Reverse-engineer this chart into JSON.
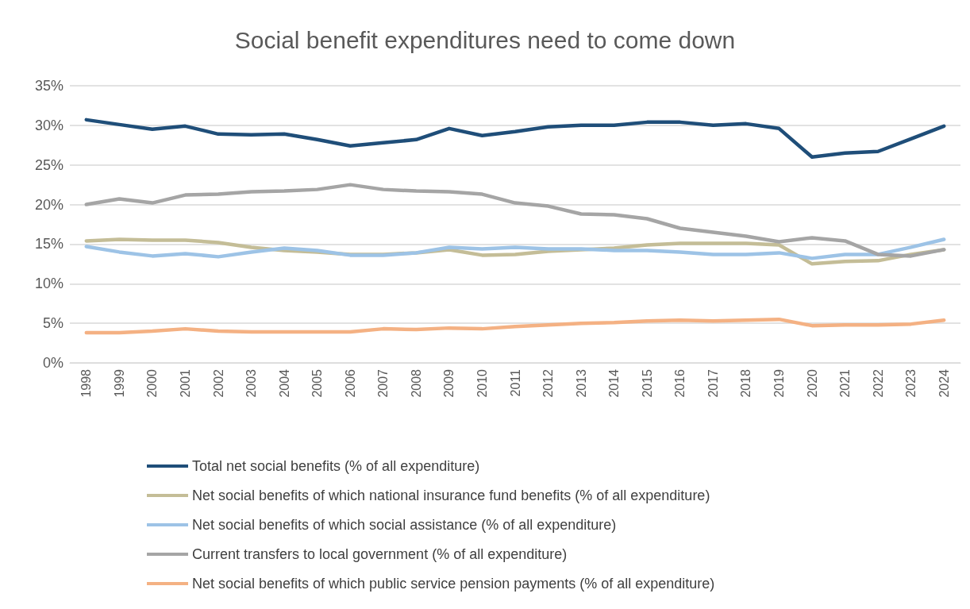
{
  "chart_data": {
    "type": "line",
    "title": "Social benefit expenditures need to come down",
    "categories": [
      "1998",
      "1999",
      "2000",
      "2001",
      "2002",
      "2003",
      "2004",
      "2005",
      "2006",
      "2007",
      "2008",
      "2009",
      "2010",
      "2011",
      "2012",
      "2013",
      "2014",
      "2015",
      "2016",
      "2017",
      "2018",
      "2019",
      "2020",
      "2021",
      "2022",
      "2023",
      "2024"
    ],
    "series": [
      {
        "name": "Total net social benefits (% of all expenditure)",
        "color": "#1f4e79",
        "values": [
          30.7,
          30.1,
          29.5,
          29.9,
          28.9,
          28.8,
          28.9,
          28.2,
          27.4,
          27.8,
          28.2,
          29.6,
          28.7,
          29.2,
          29.8,
          30.0,
          30.0,
          30.4,
          30.4,
          30.0,
          30.2,
          29.6,
          26.0,
          26.5,
          26.7,
          28.3,
          29.9
        ]
      },
      {
        "name": "Net social benefits of which national insurance fund benefits (% of all expenditure)",
        "color": "#c4bd97",
        "values": [
          15.4,
          15.6,
          15.5,
          15.5,
          15.2,
          14.6,
          14.2,
          14.0,
          13.7,
          13.7,
          13.9,
          14.3,
          13.6,
          13.7,
          14.1,
          14.3,
          14.5,
          14.9,
          15.1,
          15.1,
          15.1,
          14.9,
          12.5,
          12.8,
          12.9,
          13.7,
          14.3
        ]
      },
      {
        "name": "Net social benefits of which social assistance (% of all expenditure)",
        "color": "#9dc3e6",
        "values": [
          14.7,
          14.0,
          13.5,
          13.8,
          13.4,
          14.0,
          14.5,
          14.2,
          13.6,
          13.6,
          13.9,
          14.6,
          14.4,
          14.6,
          14.4,
          14.4,
          14.2,
          14.2,
          14.0,
          13.7,
          13.7,
          13.9,
          13.2,
          13.7,
          13.7,
          14.6,
          15.6
        ]
      },
      {
        "name": "Current transfers to local government (% of all expenditure)",
        "color": "#a5a5a5",
        "values": [
          20.0,
          20.7,
          20.2,
          21.2,
          21.3,
          21.6,
          21.7,
          21.9,
          22.5,
          21.9,
          21.7,
          21.6,
          21.3,
          20.2,
          19.8,
          18.8,
          18.7,
          18.2,
          17.0,
          16.5,
          16.0,
          15.3,
          15.8,
          15.4,
          13.7,
          13.5,
          14.3
        ]
      },
      {
        "name": "Net social benefits of which public service pension payments (% of all expenditure)",
        "color": "#f4b183",
        "values": [
          3.8,
          3.8,
          4.0,
          4.3,
          4.0,
          3.9,
          3.9,
          3.9,
          3.9,
          4.3,
          4.2,
          4.4,
          4.3,
          4.6,
          4.8,
          5.0,
          5.1,
          5.3,
          5.4,
          5.3,
          5.4,
          5.5,
          4.7,
          4.8,
          4.8,
          4.9,
          5.4
        ]
      }
    ],
    "ylim": [
      0,
      35
    ],
    "yticks": [
      {
        "value": 0,
        "label": "0%"
      },
      {
        "value": 5,
        "label": "5%"
      },
      {
        "value": 10,
        "label": "10%"
      },
      {
        "value": 15,
        "label": "15%"
      },
      {
        "value": 20,
        "label": "20%"
      },
      {
        "value": 25,
        "label": "25%"
      },
      {
        "value": 30,
        "label": "30%"
      },
      {
        "value": 35,
        "label": "35%"
      }
    ],
    "grid": "y",
    "legend": "bottom",
    "marker": "none",
    "line_style": "solid"
  }
}
